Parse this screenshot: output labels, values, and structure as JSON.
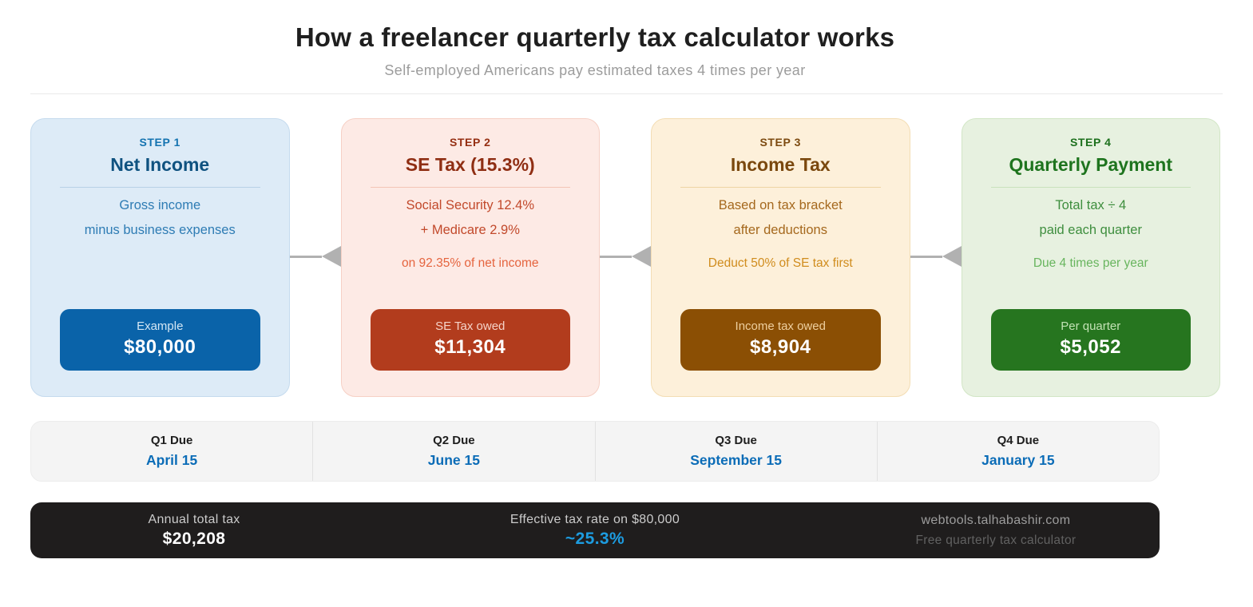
{
  "header": {
    "title": "How a freelancer quarterly tax calculator works",
    "subtitle": "Self-employed Americans pay estimated taxes 4 times per year"
  },
  "steps": [
    {
      "step_label": "STEP 1",
      "title": "Net Income",
      "line1": "Gross income",
      "line2": "minus business expenses",
      "accent_line": "",
      "badge_label": "Example",
      "badge_value": "$80,000",
      "colors": {
        "bg": "#ddebf7",
        "border": "#c5dbee",
        "step": "#1473b0",
        "title": "#0f5280",
        "divider": "#b7d1e6",
        "body": "#2e7cb4",
        "accent": "#2e7cb4",
        "badge_bg": "#0a63a9",
        "badge_label": "#d3e6f4"
      }
    },
    {
      "step_label": "STEP 2",
      "title": "SE Tax (15.3%)",
      "line1": "Social Security 12.4%",
      "line2": "+ Medicare 2.9%",
      "accent_line": "on 92.35% of net income",
      "badge_label": "SE Tax owed",
      "badge_value": "$11,304",
      "colors": {
        "bg": "#fdeae5",
        "border": "#f6d0c5",
        "step": "#952f13",
        "title": "#8f2e13",
        "divider": "#f3c4b6",
        "body": "#c2492b",
        "accent": "#e5643e",
        "badge_bg": "#b23c1d",
        "badge_label": "#f5d3c8"
      }
    },
    {
      "step_label": "STEP 3",
      "title": "Income Tax",
      "line1": "Based on tax bracket",
      "line2": "after deductions",
      "accent_line": "Deduct 50% of SE tax first",
      "badge_label": "Income tax owed",
      "badge_value": "$8,904",
      "colors": {
        "bg": "#fdf0da",
        "border": "#f3ddb4",
        "step": "#7c4a10",
        "title": "#7a480e",
        "divider": "#eed4a4",
        "body": "#a5681d",
        "accent": "#d08c1d",
        "badge_bg": "#8b4f04",
        "badge_label": "#eecf9f"
      }
    },
    {
      "step_label": "STEP 4",
      "title": "Quarterly Payment",
      "line1": "Total tax ÷ 4",
      "line2": "paid each quarter",
      "accent_line": "Due 4 times per year",
      "badge_label": "Per quarter",
      "badge_value": "$5,052",
      "colors": {
        "bg": "#e7f1e0",
        "border": "#d2e6c6",
        "step": "#1d701d",
        "title": "#1e741e",
        "divider": "#c9e2bc",
        "body": "#3e8e3e",
        "accent": "#68b55e",
        "badge_bg": "#26751f",
        "badge_label": "#c2e2b4"
      }
    }
  ],
  "quarters": [
    {
      "label": "Q1 Due",
      "date": "April 15"
    },
    {
      "label": "Q2 Due",
      "date": "June 15"
    },
    {
      "label": "Q3 Due",
      "date": "September 15"
    },
    {
      "label": "Q4 Due",
      "date": "January 15"
    }
  ],
  "summary": {
    "annual_label": "Annual total tax",
    "annual_value": "$20,208",
    "rate_label": "Effective tax rate on $80,000",
    "rate_value": "~25.3%",
    "site": "webtools.talhabashir.com",
    "tagline": "Free quarterly tax calculator"
  },
  "theme": {
    "date_color": "#0b6cb7",
    "rate_color": "#1d9ce0",
    "arrow_color": "#b1b1b1"
  }
}
